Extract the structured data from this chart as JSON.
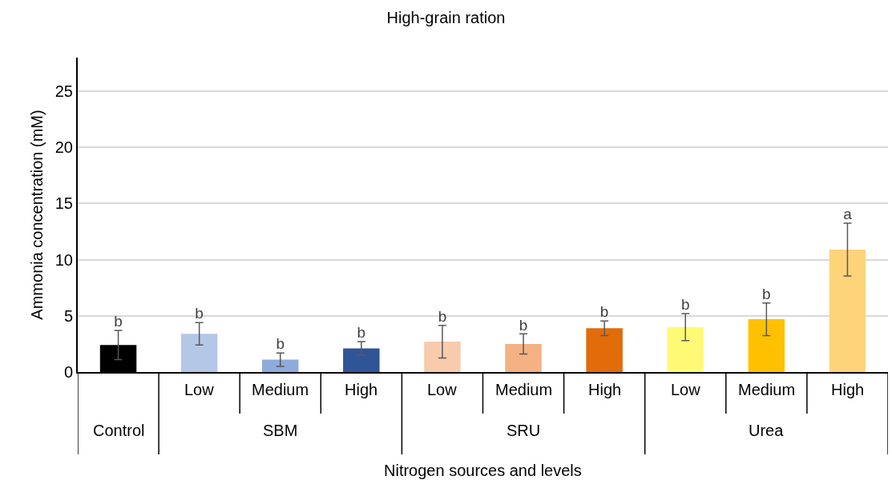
{
  "chart_data": {
    "type": "bar",
    "title": "High-grain ration",
    "xlabel": "Nitrogen sources and levels",
    "ylabel": "Ammonia concentration (mM)",
    "categories": [
      null,
      "Low",
      "Medium",
      "High",
      "Low",
      "Medium",
      "High",
      "Low",
      "Medium",
      "High"
    ],
    "values": [
      2.4,
      3.4,
      1.1,
      2.1,
      2.7,
      2.5,
      3.9,
      4.0,
      4.7,
      10.9
    ],
    "errors": [
      1.3,
      1.0,
      0.6,
      0.6,
      1.45,
      0.9,
      0.65,
      1.2,
      1.45,
      2.35
    ],
    "colors": [
      "#000000",
      "#b4c7e7",
      "#8faadc",
      "#2f5597",
      "#f8cbad",
      "#f4b183",
      "#e26b0a",
      "#fffa75",
      "#ffc000",
      "#fdd47a"
    ],
    "value_labels": [
      "b",
      "b",
      "b",
      "b",
      "b",
      "b",
      "b",
      "b",
      "b",
      "a"
    ],
    "annotations": [
      "Control",
      "SBM",
      "SRU",
      "Urea"
    ],
    "ylim": [
      0,
      28
    ],
    "yticks": [
      0,
      5,
      10,
      15,
      20,
      25
    ],
    "grid": "y"
  }
}
